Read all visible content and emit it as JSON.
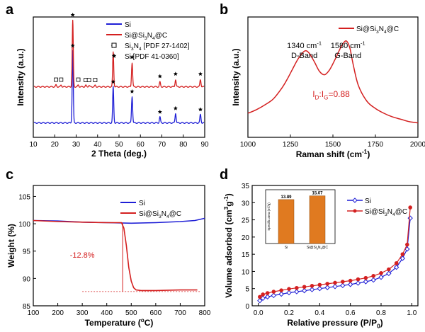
{
  "chart_data": [
    {
      "panel_label": "a",
      "type": "line",
      "xlabel": "2 Theta (deg.)",
      "ylabel": "Intensity (a.u.)",
      "xlim": [
        10,
        90
      ],
      "xticks": [
        "10",
        "20",
        "30",
        "40",
        "50",
        "60",
        "70",
        "80",
        "90"
      ],
      "legend_position": "top-right",
      "legend": [
        {
          "name": "Si",
          "color": "#1f1fd6",
          "kind": "line"
        },
        {
          "name_parts": [
            "Si@Si",
            "3",
            "N",
            "4",
            "@C"
          ],
          "color": "#d42020",
          "kind": "line"
        },
        {
          "name_parts": [
            "Si",
            "3",
            "N",
            "4",
            " [PDF 27-1402]"
          ],
          "kind": "square-marker"
        },
        {
          "name": "Si [PDF 41-0360]",
          "kind": "star-marker"
        }
      ],
      "series": [
        {
          "name": "Si",
          "color": "#1f1fd6",
          "baseline": 0.12,
          "peaks": [
            [
              28.4,
              0.6
            ],
            [
              47.3,
              0.3
            ],
            [
              56.1,
              0.22
            ],
            [
              69.1,
              0.05
            ],
            [
              76.4,
              0.08
            ],
            [
              88.0,
              0.07
            ]
          ]
        },
        {
          "name": "Si@Si3N4@C",
          "color": "#d42020",
          "baseline": 0.42,
          "peaks": [
            [
              20.6,
              0.015
            ],
            [
              23.0,
              0.015
            ],
            [
              28.4,
              0.55
            ],
            [
              31.0,
              0.015
            ],
            [
              34.5,
              0.012
            ],
            [
              36.0,
              0.012
            ],
            [
              38.9,
              0.012
            ],
            [
              47.3,
              0.29
            ],
            [
              56.1,
              0.2
            ],
            [
              69.1,
              0.04
            ],
            [
              76.4,
              0.06
            ],
            [
              88.0,
              0.06
            ]
          ]
        }
      ],
      "annotations": {
        "si_star_positions": [
          28.4,
          47.3,
          56.1,
          69.1,
          76.4,
          88.0
        ],
        "si3n4_square_positions": [
          20.6,
          23.0,
          31.0,
          34.5,
          36.0,
          38.9
        ]
      }
    },
    {
      "panel_label": "b",
      "type": "line",
      "xlabel_parts": [
        "Raman shift (cm",
        "-1",
        ")"
      ],
      "ylabel": "Intensity (a.u.)",
      "xlim": [
        1000,
        2000
      ],
      "xticks": [
        "1000",
        "1250",
        "1500",
        "1750",
        "2000"
      ],
      "legend_position": "top-right",
      "legend": [
        {
          "name_parts": [
            "Si@Si",
            "3",
            "N",
            "4",
            "@C"
          ],
          "color": "#d42020",
          "kind": "line"
        }
      ],
      "series": [
        {
          "name": "Si@Si3N4@C",
          "color": "#d42020",
          "x": [
            1000,
            1050,
            1100,
            1150,
            1200,
            1230,
            1260,
            1290,
            1320,
            1340,
            1360,
            1390,
            1420,
            1450,
            1480,
            1510,
            1540,
            1560,
            1580,
            1600,
            1620,
            1650,
            1700,
            1750,
            1800,
            1850,
            1900,
            1950,
            2000
          ],
          "y": [
            0.2,
            0.23,
            0.27,
            0.32,
            0.41,
            0.48,
            0.56,
            0.64,
            0.7,
            0.72,
            0.7,
            0.63,
            0.55,
            0.52,
            0.56,
            0.64,
            0.73,
            0.78,
            0.8,
            0.74,
            0.6,
            0.43,
            0.3,
            0.24,
            0.2,
            0.17,
            0.15,
            0.13,
            0.12
          ]
        }
      ],
      "annotations": {
        "d_band_wavenumber_parts": [
          "1340 cm",
          "-1"
        ],
        "d_band_label": "D-Band",
        "g_band_wavenumber_parts": [
          "1580 cm",
          "-1"
        ],
        "g_band_label": "G-Band",
        "ratio_parts": [
          "I",
          "D",
          ":I",
          "G",
          "=0.88"
        ]
      }
    },
    {
      "panel_label": "c",
      "type": "line",
      "xlabel_parts": [
        "Temperature (",
        "o",
        "C)"
      ],
      "ylabel": "Weight (%)",
      "xlim": [
        100,
        800
      ],
      "ylim": [
        85,
        107
      ],
      "xticks": [
        "100",
        "200",
        "300",
        "400",
        "500",
        "600",
        "700",
        "800"
      ],
      "yticks": [
        "85",
        "90",
        "95",
        "100",
        "105"
      ],
      "legend_position": "top-right",
      "legend": [
        {
          "name": "Si",
          "color": "#1f1fd6",
          "kind": "line"
        },
        {
          "name_parts": [
            "Si@Si",
            "3",
            "N",
            "4",
            "@C"
          ],
          "color": "#d42020",
          "kind": "line"
        }
      ],
      "series": [
        {
          "name": "Si",
          "color": "#1f1fd6",
          "x": [
            100,
            200,
            300,
            400,
            500,
            600,
            700,
            760,
            800
          ],
          "y": [
            100.6,
            100.5,
            100.3,
            100.2,
            100.1,
            100.2,
            100.4,
            100.6,
            101.0
          ]
        },
        {
          "name": "Si@Si3N4@C",
          "color": "#d42020",
          "x": [
            100,
            200,
            300,
            400,
            460,
            470,
            480,
            490,
            500,
            510,
            520,
            540,
            600,
            700,
            770
          ],
          "y": [
            100.6,
            100.4,
            100.3,
            100.2,
            100.2,
            99.2,
            96.0,
            92.0,
            89.5,
            88.3,
            87.9,
            87.8,
            87.8,
            87.9,
            87.9
          ]
        }
      ],
      "annotations": {
        "weight_loss": "-12.8%",
        "loss_level_percent": 87.6,
        "loss_temperature": 465
      }
    },
    {
      "panel_label": "d",
      "type": "line",
      "xlabel_parts": [
        "Relative pressure (P/P",
        "0",
        ")"
      ],
      "ylabel_parts": [
        "Volume adsorbed (cm",
        "3",
        "g",
        "-1",
        ")"
      ],
      "xlim": [
        -0.04,
        1.04
      ],
      "ylim": [
        0,
        35
      ],
      "xticks": [
        "0.0",
        "0.2",
        "0.4",
        "0.6",
        "0.8",
        "1.0"
      ],
      "yticks": [
        "0",
        "5",
        "10",
        "15",
        "20",
        "25",
        "30",
        "35"
      ],
      "legend_position": "top-right",
      "legend": [
        {
          "name": "Si",
          "color": "#1f1fd6",
          "kind": "line-diamond"
        },
        {
          "name_parts": [
            "Si@Si",
            "3",
            "N",
            "4",
            "@C"
          ],
          "color": "#d42020",
          "kind": "line-circle"
        }
      ],
      "series": [
        {
          "name": "Si",
          "color": "#1f1fd6",
          "x": [
            0.01,
            0.03,
            0.06,
            0.1,
            0.15,
            0.2,
            0.25,
            0.3,
            0.35,
            0.4,
            0.45,
            0.5,
            0.55,
            0.6,
            0.65,
            0.7,
            0.75,
            0.8,
            0.85,
            0.9,
            0.94,
            0.97,
            0.99
          ],
          "y": [
            1.5,
            2.2,
            2.6,
            3.0,
            3.4,
            3.8,
            4.1,
            4.4,
            4.7,
            5.0,
            5.3,
            5.6,
            5.9,
            6.2,
            6.6,
            7.0,
            7.5,
            8.3,
            9.4,
            11.2,
            13.8,
            16.5,
            25.5
          ]
        },
        {
          "name": "Si@Si3N4@C",
          "color": "#d42020",
          "x": [
            0.01,
            0.03,
            0.06,
            0.1,
            0.15,
            0.2,
            0.25,
            0.3,
            0.35,
            0.4,
            0.45,
            0.5,
            0.55,
            0.6,
            0.65,
            0.7,
            0.75,
            0.8,
            0.85,
            0.9,
            0.94,
            0.97,
            0.99
          ],
          "y": [
            2.6,
            3.3,
            3.7,
            4.1,
            4.5,
            4.9,
            5.2,
            5.5,
            5.8,
            6.1,
            6.4,
            6.7,
            7.0,
            7.3,
            7.7,
            8.1,
            8.7,
            9.5,
            10.6,
            12.4,
            15.0,
            17.8,
            28.6
          ]
        }
      ],
      "inset": {
        "type": "bar",
        "ylabel_parts": [
          "Specific area (m",
          "2",
          "/g)"
        ],
        "categories": [
          "Si",
          "Si@Si3N4@C"
        ],
        "category_label_parts": [
          [
            "Si"
          ],
          [
            "Si@Si",
            "3",
            "N",
            "4",
            "@C"
          ]
        ],
        "values": [
          13.89,
          15.07
        ],
        "value_labels": [
          "13.89",
          "15.07"
        ],
        "color": "#e07a20"
      }
    }
  ]
}
